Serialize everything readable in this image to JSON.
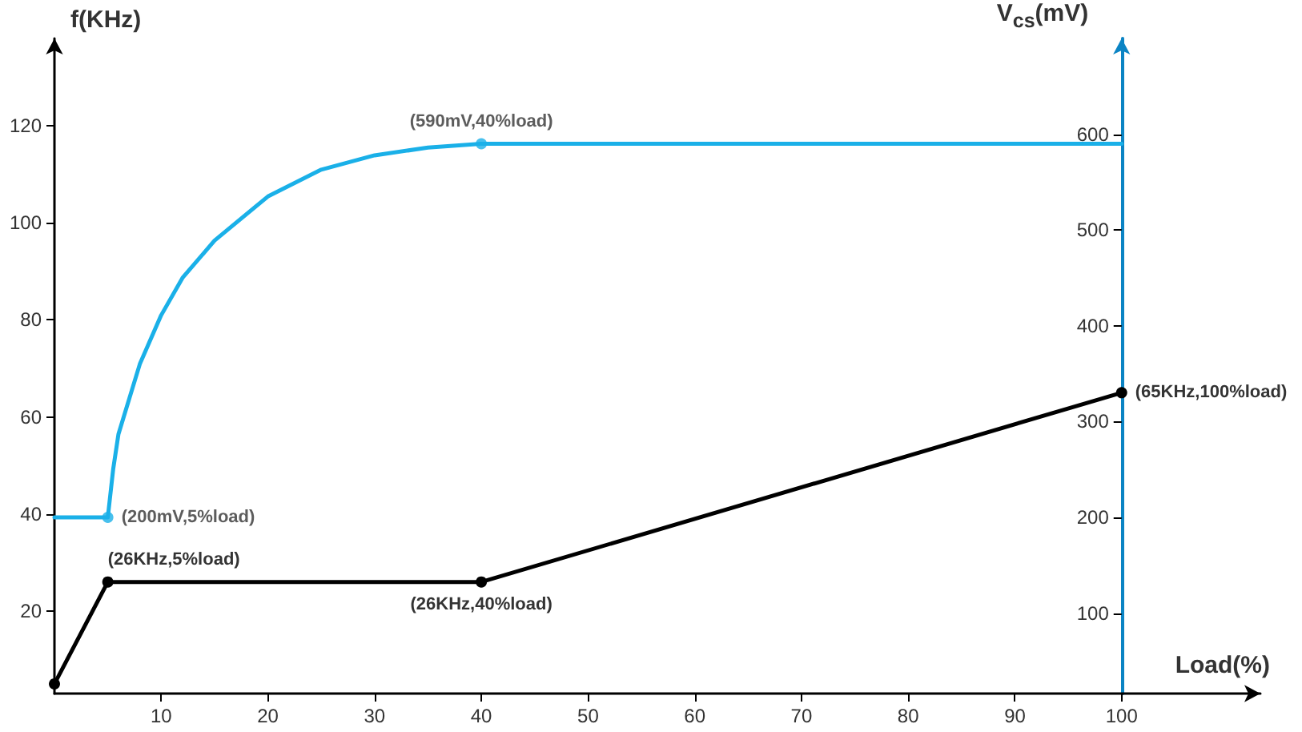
{
  "chart_data": {
    "type": "line",
    "xlabel": "Load(%)",
    "ylabel": "f(KHz)",
    "y2label": "V$_{cs}$(mV)",
    "xlim": [
      0,
      113
    ],
    "xticks": [
      10,
      20,
      30,
      40,
      50,
      60,
      70,
      80,
      90,
      100
    ],
    "ylim": [
      3,
      138
    ],
    "yticks": [
      20,
      40,
      60,
      80,
      100,
      120
    ],
    "y2lim": [
      16,
      700
    ],
    "y2ticks": [
      100,
      200,
      300,
      400,
      500,
      600
    ],
    "grid": false,
    "series": [
      {
        "color": "#000000",
        "marker": "circle",
        "x": [
          0,
          5,
          40,
          100
        ],
        "values": [
          5,
          26,
          26,
          65
        ],
        "value_labels": [
          null,
          "(26KHz,5%load)",
          "(26KHz,40%load)",
          "(65KHz,100%load)"
        ]
      },
      {
        "color": "#1ab0e8",
        "axis": "y2",
        "marker": "none",
        "x": [
          0,
          5,
          5.5,
          6,
          8,
          10,
          12,
          15,
          20,
          25,
          30,
          35,
          40,
          100
        ],
        "values": [
          200,
          200,
          250,
          287,
          360,
          411,
          450,
          489,
          535,
          563,
          578,
          586,
          590,
          590
        ]
      },
      {
        "type": "scatter",
        "color": "#1ab0e8",
        "axis": "y2",
        "marker": "circle",
        "x": [
          5,
          40
        ],
        "values": [
          200,
          590
        ],
        "value_labels": [
          "(200mV,5%load)",
          "(590mV,40%load)"
        ]
      }
    ]
  }
}
